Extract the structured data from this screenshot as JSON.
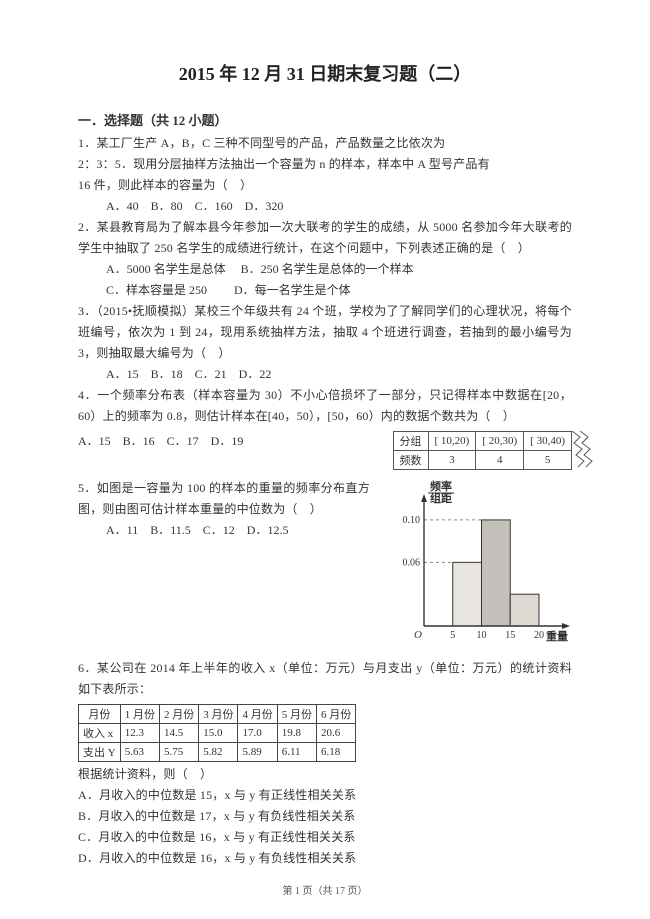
{
  "title": "2015 年 12 月 31 日期末复习题（二）",
  "section": "一．选择题（共 12 小题）",
  "q1": {
    "text": "1．某工厂生产 A，B，C 三种不同型号的产品，产品数量之比依次为",
    "text2": "2：3：5．现用分层抽样方法抽出一个容量为 n 的样本，样本中 A 型号产品有",
    "text3": "16 件，则此样本的容量为（　）",
    "opts": "A．40　B．80　C．160　D．320"
  },
  "q2": {
    "text": "2．某县教育局为了解本县今年参加一次大联考的学生的成绩，从 5000 名参加今年大联考的学生中抽取了 250 名学生的成绩进行统计，在这个问题中，下列表述正确的是（　）",
    "optA": "A．5000 名学生是总体",
    "optB": "B．250 名学生是总体的一个样本",
    "optC": "C．样本容量是 250",
    "optD": "D．每一名学生是个体"
  },
  "q3": {
    "text": "3．（2015•抚顺模拟）某校三个年级共有 24 个班，学校为了了解同学们的心理状况，将每个班编号，依次为 1 到 24，现用系统抽样方法，抽取 4 个班进行调查，若抽到的最小编号为 3，则抽取最大编号为（　）",
    "opts": "A．15　B．18　C．21　D．22"
  },
  "q4": {
    "text": "4．一个频率分布表（样本容量为 30）不小心倍损坏了一部分，只记得样本中数据在[20，60）上的频率为 0.8，则估计样本在[40，50），[50，60）内的数据个数共为（　）",
    "opts": "A．15　B．16　C．17　D．19",
    "table": {
      "headers": [
        "分组",
        "[ 10,20)",
        "[ 20,30)",
        "[ 30,40)"
      ],
      "row": [
        "频数",
        "3",
        "4",
        "5"
      ]
    }
  },
  "q5": {
    "text": "5．如图是一容量为 100 的样本的重量的频率分布直方图，则由图可估计样本重量的中位数为（　）",
    "opts": "A．11　B．11.5　C．12　D．12.5",
    "histogram": {
      "bars": [
        {
          "x0": 5,
          "x1": 10,
          "h": 0.06,
          "fill": "#e8e4e0"
        },
        {
          "x0": 10,
          "x1": 15,
          "h": 0.1,
          "fill": "#c5bfb9"
        },
        {
          "x0": 15,
          "x1": 20,
          "h": 0.03,
          "fill": "#ddd8d2"
        }
      ],
      "yticks": [
        0.06,
        0.1
      ],
      "xticks": [
        5,
        10,
        15,
        20
      ],
      "ylabel_top": "频率",
      "ylabel_bot": "组距",
      "xlabel": "重量",
      "axis_color": "#333",
      "grid_color": "#888",
      "xlim": [
        0,
        24
      ],
      "ylim": [
        0,
        0.115
      ]
    }
  },
  "q6": {
    "text": "6．某公司在 2014 年上半年的收入 x（单位：万元）与月支出 y（单位：万元）的统计资料如下表所示：",
    "headers": [
      "月份",
      "1 月份",
      "2 月份",
      "3 月份",
      "4 月份",
      "5 月份",
      "6 月份"
    ],
    "rowx": [
      "收入 x",
      "12.3",
      "14.5",
      "15.0",
      "17.0",
      "19.8",
      "20.6"
    ],
    "rowy": [
      "支出 Y",
      "5.63",
      "5.75",
      "5.82",
      "5.89",
      "6.11",
      "6.18"
    ],
    "after": "根据统计资料，则（　）",
    "optA": "A．月收入的中位数是 15，x 与 y 有正线性相关关系",
    "optB": "B．月收入的中位数是 17，x 与 y 有负线性相关关系",
    "optC": "C．月收入的中位数是 16，x 与 y 有正线性相关关系",
    "optD": "D．月收入的中位数是 16，x 与 y 有负线性相关关系"
  },
  "footer": "第 1 页（共 17 页）"
}
